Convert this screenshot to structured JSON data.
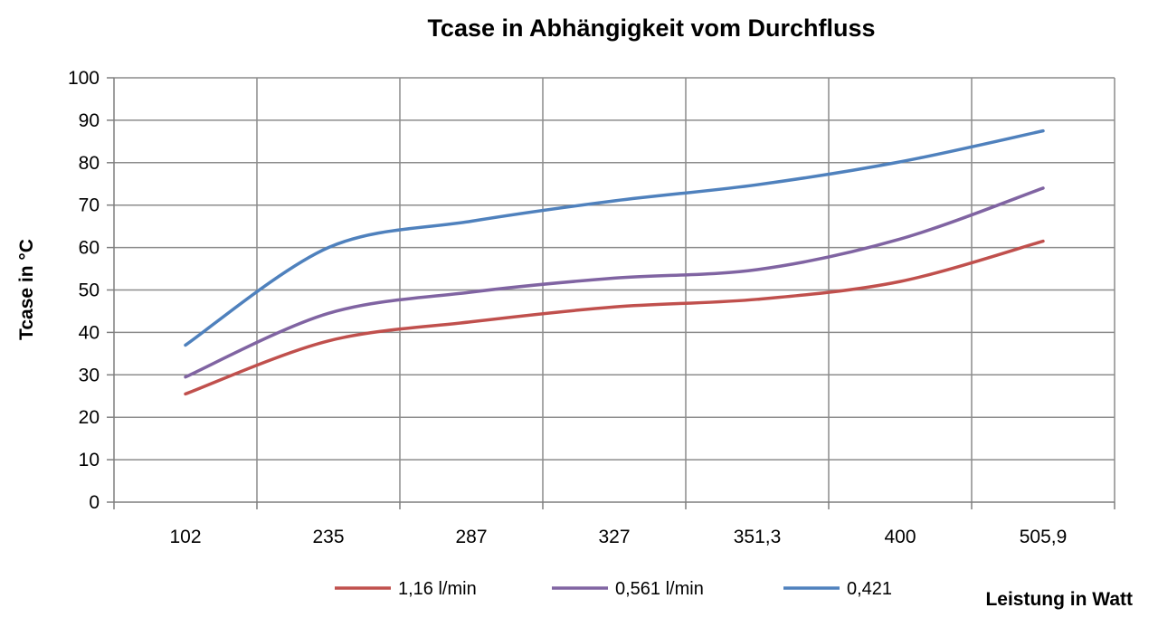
{
  "chart_data": {
    "type": "line",
    "title": "Tcase in Abhängigkeit vom Durchfluss",
    "xlabel": "Leistung in Watt",
    "ylabel": "Tcase in °C",
    "categories": [
      "102",
      "235",
      "287",
      "327",
      "351,3",
      "400",
      "505,9"
    ],
    "ylim": [
      0,
      100
    ],
    "yticks": [
      "0",
      "10",
      "20",
      "30",
      "40",
      "50",
      "60",
      "70",
      "80",
      "90",
      "100"
    ],
    "grid": true,
    "legend_position": "bottom",
    "series": [
      {
        "name": "1,16 l/min",
        "color": "#c0504d",
        "values": [
          25.5,
          38,
          42.5,
          46,
          47.8,
          52,
          61.5
        ]
      },
      {
        "name": "0,561 l/min",
        "color": "#8064a2",
        "values": [
          29.5,
          44.5,
          49.5,
          52.8,
          54.8,
          62,
          74
        ]
      },
      {
        "name": "0,421",
        "color": "#4f81bd",
        "values": [
          37,
          60,
          66.2,
          71,
          74.8,
          80.2,
          87.5
        ]
      }
    ]
  }
}
